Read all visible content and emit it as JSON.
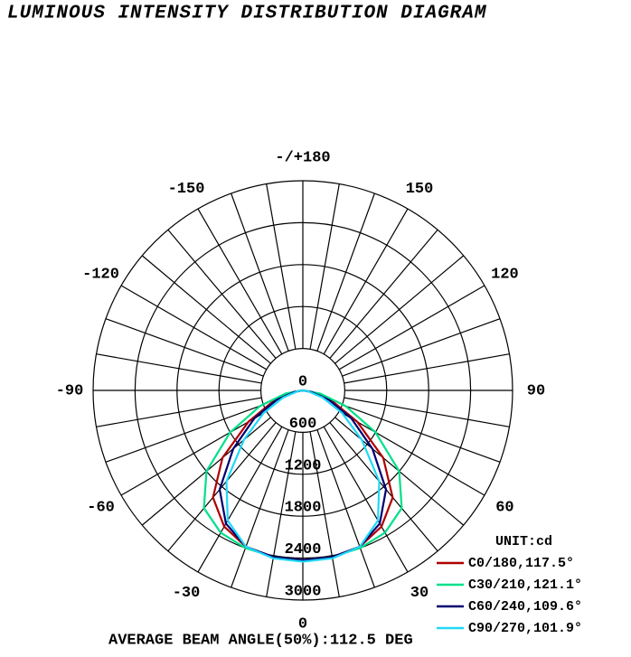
{
  "chart_data": {
    "type": "polar",
    "title": "LUMINOUS INTENSITY DISTRIBUTION DIAGRAM",
    "unit_label": "UNIT:cd",
    "footer": "AVERAGE BEAM ANGLE(50%):112.5 DEG",
    "rlim": [
      0,
      3000
    ],
    "rticks": [
      0,
      600,
      1200,
      1800,
      2400,
      3000
    ],
    "angle_ticks": [
      -150,
      -120,
      -90,
      -60,
      -30,
      0,
      30,
      60,
      90,
      120,
      150,
      {
        "value": 180,
        "label": "-/+180"
      }
    ],
    "x": [
      -90,
      -80,
      -70,
      -60,
      -50,
      -40,
      -30,
      -20,
      -10,
      0,
      10,
      20,
      30,
      40,
      50,
      60,
      70,
      80,
      90
    ],
    "series": [
      {
        "name": "C0/180,117.5°",
        "color": "#b00000",
        "values": [
          0,
          150,
          450,
          900,
          1500,
          2000,
          2250,
          2380,
          2420,
          2430,
          2420,
          2380,
          2250,
          2000,
          1500,
          900,
          450,
          150,
          0
        ]
      },
      {
        "name": "C30/210,121.1°",
        "color": "#00e08a",
        "values": [
          0,
          250,
          650,
          1200,
          1800,
          2200,
          2350,
          2400,
          2420,
          2430,
          2420,
          2400,
          2350,
          2200,
          1800,
          1200,
          650,
          250,
          0
        ]
      },
      {
        "name": "C60/240,109.6°",
        "color": "#000070",
        "values": [
          0,
          120,
          400,
          800,
          1300,
          1850,
          2200,
          2380,
          2420,
          2430,
          2420,
          2380,
          2200,
          1850,
          1300,
          800,
          400,
          120,
          0
        ]
      },
      {
        "name": "C90/270,101.9°",
        "color": "#20d8f8",
        "values": [
          0,
          80,
          300,
          650,
          1100,
          1700,
          2150,
          2380,
          2440,
          2450,
          2440,
          2380,
          2150,
          1700,
          1100,
          650,
          300,
          80,
          0
        ]
      }
    ]
  }
}
